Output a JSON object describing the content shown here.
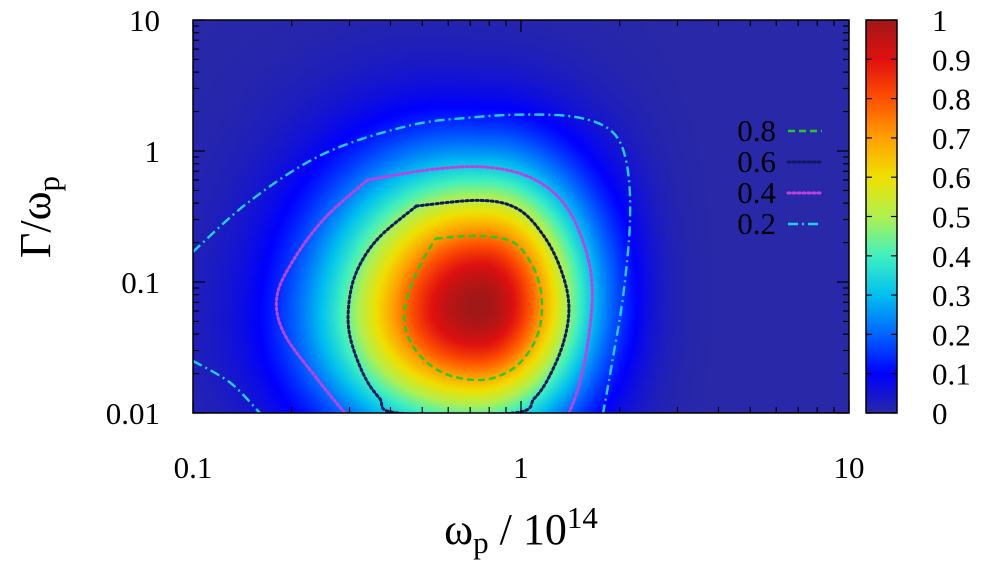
{
  "chart_data": {
    "type": "heatmap",
    "x_scale": "log",
    "y_scale": "log",
    "xlim": [
      0.1,
      10
    ],
    "ylim": [
      0.01,
      10
    ],
    "xlabel": "ωp / 10^14",
    "ylabel": "Γ/ωp",
    "x_tick_labels": [
      {
        "value": 0.1,
        "label": "0.1"
      },
      {
        "value": 1,
        "label": "1"
      },
      {
        "value": 10,
        "label": "10"
      }
    ],
    "y_tick_labels": [
      {
        "value": 0.01,
        "label": "0.01"
      },
      {
        "value": 0.1,
        "label": "0.1"
      },
      {
        "value": 1,
        "label": "1"
      },
      {
        "value": 10,
        "label": "10"
      }
    ],
    "peak": {
      "x": 0.75,
      "y": 0.065,
      "value": 1.0
    },
    "colorbar": {
      "range": [
        0,
        1
      ],
      "tick_labels": [
        "0",
        "0.1",
        "0.2",
        "0.3",
        "0.4",
        "0.5",
        "0.6",
        "0.7",
        "0.8",
        "0.9",
        "1"
      ]
    },
    "contours": [
      {
        "level": "0.8",
        "color": "#22cc22",
        "dash": "dashed",
        "points": [
          [
            0.55,
            0.215
          ],
          [
            0.75,
            0.225
          ],
          [
            0.95,
            0.2
          ],
          [
            1.08,
            0.135
          ],
          [
            1.15,
            0.085
          ],
          [
            1.15,
            0.05
          ],
          [
            1.08,
            0.032
          ],
          [
            0.95,
            0.022
          ],
          [
            0.78,
            0.018
          ],
          [
            0.62,
            0.019
          ],
          [
            0.52,
            0.024
          ],
          [
            0.46,
            0.035
          ],
          [
            0.44,
            0.055
          ],
          [
            0.46,
            0.09
          ],
          [
            0.5,
            0.145
          ],
          [
            0.55,
            0.215
          ]
        ]
      },
      {
        "level": "0.6",
        "color": "#101860",
        "dash": "dotted",
        "points": [
          [
            0.48,
            0.38
          ],
          [
            0.75,
            0.42
          ],
          [
            0.98,
            0.36
          ],
          [
            1.18,
            0.22
          ],
          [
            1.33,
            0.12
          ],
          [
            1.4,
            0.065
          ],
          [
            1.35,
            0.035
          ],
          [
            1.22,
            0.019
          ],
          [
            1.1,
            0.013
          ],
          [
            0.95,
            0.01
          ],
          [
            0.42,
            0.01
          ],
          [
            0.37,
            0.013
          ],
          [
            0.33,
            0.02
          ],
          [
            0.3,
            0.04
          ],
          [
            0.3,
            0.075
          ],
          [
            0.32,
            0.13
          ],
          [
            0.37,
            0.22
          ],
          [
            0.48,
            0.38
          ]
        ]
      },
      {
        "level": "0.4",
        "color": "#c040e0",
        "dash": "dotted",
        "points": [
          [
            0.34,
            0.6
          ],
          [
            0.55,
            0.73
          ],
          [
            0.8,
            0.75
          ],
          [
            1.08,
            0.62
          ],
          [
            1.35,
            0.4
          ],
          [
            1.55,
            0.2
          ],
          [
            1.65,
            0.09
          ],
          [
            1.6,
            0.035
          ],
          [
            1.5,
            0.016
          ],
          [
            1.4,
            0.01
          ]
        ],
        "points2": [
          [
            0.29,
            0.01
          ],
          [
            0.24,
            0.018
          ],
          [
            0.19,
            0.04
          ],
          [
            0.18,
            0.075
          ],
          [
            0.2,
            0.14
          ],
          [
            0.25,
            0.3
          ],
          [
            0.34,
            0.6
          ]
        ]
      },
      {
        "level": "0.2",
        "color": "#20d0e8",
        "dash": "dashdot",
        "points": [
          [
            0.1,
            0.17
          ],
          [
            0.15,
            0.42
          ],
          [
            0.25,
            0.95
          ],
          [
            0.45,
            1.55
          ],
          [
            0.7,
            1.8
          ],
          [
            1.05,
            1.9
          ],
          [
            1.5,
            1.8
          ],
          [
            1.9,
            1.4
          ],
          [
            2.1,
            0.8
          ],
          [
            2.15,
            0.3
          ],
          [
            2.05,
            0.08
          ],
          [
            1.9,
            0.025
          ],
          [
            1.78,
            0.01
          ]
        ],
        "points2": [
          [
            0.1,
            0.025
          ],
          [
            0.13,
            0.017
          ],
          [
            0.16,
            0.01
          ]
        ]
      }
    ],
    "legend": {
      "placement": "right",
      "entries": [
        "0.8",
        "0.6",
        "0.4",
        "0.2"
      ]
    }
  }
}
